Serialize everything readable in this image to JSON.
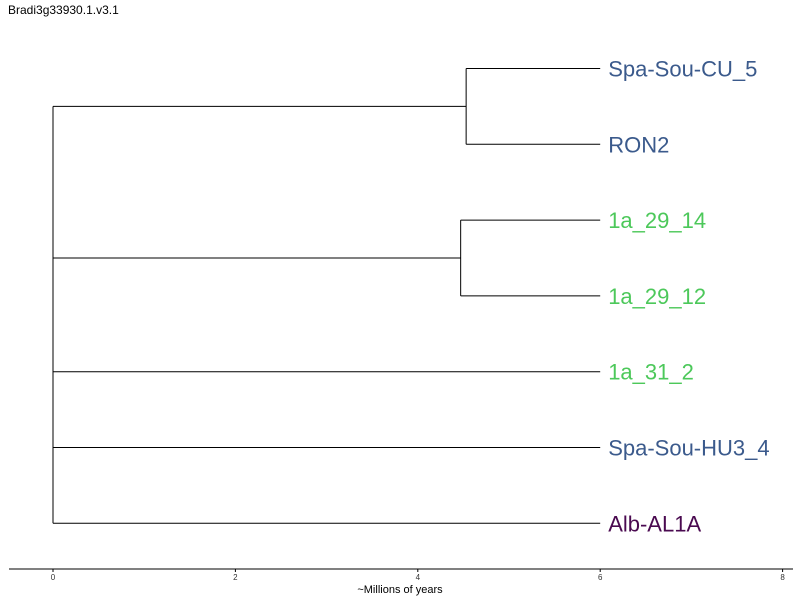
{
  "title": "Bradi3g33930.1.v3.1",
  "chart_data": {
    "type": "dendrogram",
    "title": "Bradi3g33930.1.v3.1",
    "xlabel": "~Millions of years",
    "xlim": [
      0,
      8
    ],
    "x_ticks": [
      0,
      2,
      4,
      6,
      8
    ],
    "tip_age": 6,
    "tips": [
      {
        "name": "Spa-Sou-CU_5",
        "color": "#3b5a8c"
      },
      {
        "name": "RON2",
        "color": "#3b5a8c"
      },
      {
        "name": "1a_29_14",
        "color": "#4cc85a"
      },
      {
        "name": "1a_29_12",
        "color": "#4cc85a"
      },
      {
        "name": "1a_31_2",
        "color": "#4cc85a"
      },
      {
        "name": "Spa-Sou-HU3_4",
        "color": "#3b5a8c"
      },
      {
        "name": "Alb-AL1A",
        "color": "#4a0a50"
      }
    ],
    "clades": [
      {
        "tips": [
          "Spa-Sou-CU_5",
          "RON2"
        ],
        "node_age": 4.53
      },
      {
        "tips": [
          "1a_29_14",
          "1a_29_12"
        ],
        "node_age": 4.47
      }
    ],
    "root_age": 0
  }
}
